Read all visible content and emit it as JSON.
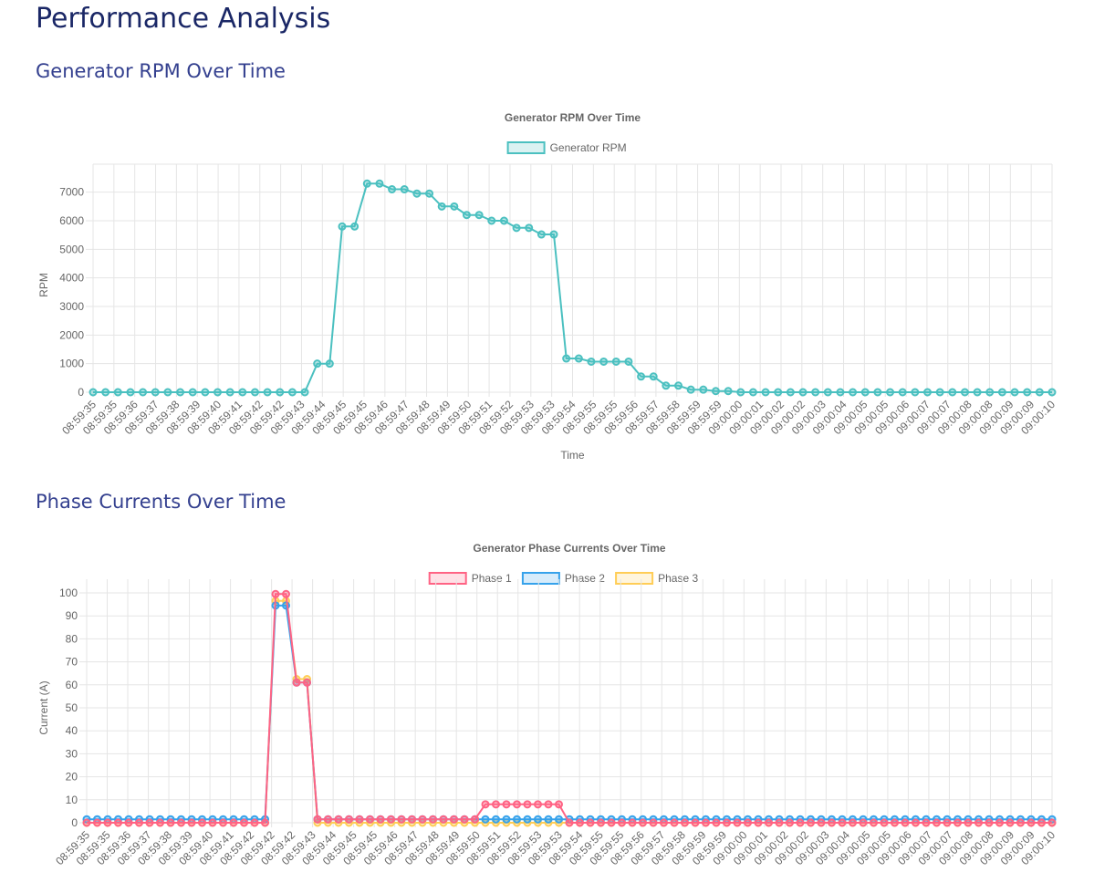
{
  "page": {
    "title": "Performance Analysis",
    "sections": [
      {
        "heading": "Generator RPM Over Time"
      },
      {
        "heading": "Phase Currents Over Time"
      }
    ]
  },
  "chart_data": [
    {
      "type": "line",
      "title": "Generator RPM Over Time",
      "xlabel": "Time",
      "ylabel": "RPM",
      "ylim": [
        0,
        7500
      ],
      "yticks": [
        0,
        1000,
        2000,
        3000,
        4000,
        5000,
        6000,
        7000
      ],
      "legend_position": "top",
      "grid": true,
      "x": [
        "08:59:35",
        "08:59:35",
        "08:59:36",
        "08:59:36",
        "08:59:37",
        "08:59:37",
        "08:59:38",
        "08:59:38",
        "08:59:39",
        "08:59:39",
        "08:59:40",
        "08:59:40",
        "08:59:41",
        "08:59:41",
        "08:59:42",
        "08:59:42",
        "08:59:42",
        "08:59:42",
        "08:59:43",
        "08:59:43",
        "08:59:44",
        "08:59:44",
        "08:59:45",
        "08:59:45",
        "08:59:45",
        "08:59:45",
        "08:59:46",
        "08:59:46",
        "08:59:47",
        "08:59:47",
        "08:59:48",
        "08:59:48",
        "08:59:49",
        "08:59:49",
        "08:59:50",
        "08:59:50",
        "08:59:51",
        "08:59:51",
        "08:59:52",
        "08:59:52",
        "08:59:53",
        "08:59:53",
        "08:59:53",
        "08:59:53",
        "08:59:54",
        "08:59:54",
        "08:59:55",
        "08:59:55",
        "08:59:56",
        "08:59:56",
        "08:59:57",
        "08:59:57",
        "08:59:58",
        "08:59:58",
        "08:59:59",
        "08:59:59",
        "09:00:00",
        "09:00:00",
        "09:00:01",
        "09:00:01",
        "09:00:02",
        "09:00:02",
        "09:00:03",
        "09:00:03",
        "09:00:04",
        "09:00:04",
        "09:00:05",
        "09:00:05",
        "09:00:06",
        "09:00:06",
        "09:00:07",
        "09:00:07",
        "09:00:08",
        "09:00:08",
        "09:00:09",
        "09:00:09",
        "09:00:10",
        "09:00:10"
      ],
      "x_tick_labels": [
        "08:59:35",
        "08:59:35",
        "08:59:36",
        "08:59:37",
        "08:59:38",
        "08:59:39",
        "08:59:40",
        "08:59:41",
        "08:59:42",
        "08:59:42",
        "08:59:43",
        "08:59:44",
        "08:59:45",
        "08:59:45",
        "08:59:46",
        "08:59:47",
        "08:59:48",
        "08:59:49",
        "08:59:50",
        "08:59:51",
        "08:59:52",
        "08:59:53",
        "08:59:53",
        "08:59:54",
        "08:59:55",
        "08:59:55",
        "08:59:56",
        "08:59:57",
        "08:59:58",
        "08:59:59",
        "08:59:59",
        "09:00:00",
        "09:00:01",
        "09:00:02",
        "09:00:02",
        "09:00:03",
        "09:00:04",
        "09:00:05",
        "09:00:05",
        "09:00:06",
        "09:00:07",
        "09:00:07",
        "09:00:08",
        "09:00:08",
        "09:00:09",
        "09:00:09",
        "09:00:10"
      ],
      "series": [
        {
          "name": "Generator RPM",
          "color": "#4bc0c0",
          "values": [
            0,
            0,
            0,
            0,
            0,
            0,
            0,
            0,
            0,
            0,
            0,
            0,
            0,
            0,
            0,
            0,
            0,
            0,
            1000,
            1000,
            5800,
            5800,
            7300,
            7300,
            7100,
            7100,
            6950,
            6950,
            6500,
            6500,
            6200,
            6200,
            6000,
            6000,
            5750,
            5750,
            5520,
            5520,
            1180,
            1180,
            1070,
            1070,
            1070,
            1070,
            550,
            550,
            230,
            230,
            90,
            90,
            40,
            40,
            0,
            0,
            0,
            0,
            0,
            0,
            0,
            0,
            0,
            0,
            0,
            0,
            0,
            0,
            0,
            0,
            0,
            0,
            0,
            0,
            0,
            0,
            0,
            0,
            0,
            0
          ]
        }
      ]
    },
    {
      "type": "line",
      "title": "Generator Phase Currents Over Time",
      "xlabel": "",
      "ylabel": "Current (A)",
      "ylim": [
        0,
        100
      ],
      "yticks": [
        0,
        10,
        20,
        30,
        40,
        50,
        60,
        70,
        80,
        90,
        100
      ],
      "legend_position": "top",
      "grid": true,
      "x_tick_labels": [
        "08:59:35",
        "08:59:35",
        "08:59:36",
        "08:59:37",
        "08:59:38",
        "08:59:39",
        "08:59:40",
        "08:59:41",
        "08:59:42",
        "08:59:42",
        "08:59:42",
        "08:59:43",
        "08:59:44",
        "08:59:45",
        "08:59:45",
        "08:59:46",
        "08:59:47",
        "08:59:48",
        "08:59:49",
        "08:59:50",
        "08:59:51",
        "08:59:52",
        "08:59:53",
        "08:59:53",
        "08:59:54",
        "08:59:55",
        "08:59:55",
        "08:59:56",
        "08:59:57",
        "08:59:58",
        "08:59:59",
        "08:59:59",
        "09:00:00",
        "09:00:01",
        "09:00:02",
        "09:00:02",
        "09:00:03",
        "09:00:04",
        "09:00:05",
        "09:00:05",
        "09:00:06",
        "09:00:07",
        "09:00:07",
        "09:00:08",
        "09:00:08",
        "09:00:09",
        "09:00:09",
        "09:00:10"
      ],
      "series": [
        {
          "name": "Phase 1",
          "color": "#ff6384",
          "values": [
            0,
            0,
            0,
            0,
            0,
            0,
            0,
            0,
            0,
            0,
            0,
            0,
            0,
            0,
            0,
            0,
            0,
            0,
            99.5,
            99.5,
            61,
            61,
            1.5,
            1.5,
            1.5,
            1.5,
            1.5,
            1.5,
            1.5,
            1.5,
            1.5,
            1.5,
            1.5,
            1.5,
            1.5,
            1.5,
            1.5,
            1.5,
            8,
            8,
            8,
            8,
            8,
            8,
            8,
            8,
            0,
            0,
            0,
            0,
            0,
            0,
            0,
            0,
            0,
            0,
            0,
            0,
            0,
            0,
            0,
            0,
            0,
            0,
            0,
            0,
            0,
            0,
            0,
            0,
            0,
            0,
            0,
            0,
            0,
            0,
            0,
            0,
            0,
            0,
            0,
            0,
            0,
            0,
            0,
            0,
            0,
            0,
            0,
            0,
            0,
            0,
            0
          ]
        },
        {
          "name": "Phase 2",
          "color": "#36a2eb",
          "values": [
            1.5,
            1.5,
            1.5,
            1.5,
            1.5,
            1.5,
            1.5,
            1.5,
            1.5,
            1.5,
            1.5,
            1.5,
            1.5,
            1.5,
            1.5,
            1.5,
            1.5,
            1.5,
            94.5,
            94.5,
            61,
            61,
            1.5,
            1.5,
            1.5,
            1.5,
            1.5,
            1.5,
            1.5,
            1.5,
            1.5,
            1.5,
            1.5,
            1.5,
            1.5,
            1.5,
            1.5,
            1.5,
            1.5,
            1.5,
            1.5,
            1.5,
            1.5,
            1.5,
            1.5,
            1.5,
            1.5,
            1.5,
            1.5,
            1.5,
            1.5,
            1.5,
            1.5,
            1.5,
            1.5,
            1.5,
            1.5,
            1.5,
            1.5,
            1.5,
            1.5,
            1.5,
            1.5,
            1.5,
            1.5,
            1.5,
            1.5,
            1.5,
            1.5,
            1.5,
            1.5,
            1.5,
            1.5,
            1.5,
            1.5,
            1.5,
            1.5,
            1.5,
            1.5,
            1.5,
            1.5,
            1.5,
            1.5,
            1.5,
            1.5,
            1.5,
            1.5,
            1.5,
            1.5,
            1.5,
            1.5,
            1.5,
            1.5
          ]
        },
        {
          "name": "Phase 3",
          "color": "#ffcd56",
          "values": [
            0,
            0,
            0,
            0,
            0,
            0,
            0,
            0,
            0,
            0,
            0,
            0,
            0,
            0,
            0,
            0,
            0,
            0,
            96.5,
            96.5,
            62.5,
            62.5,
            0,
            0,
            0,
            0,
            0,
            0,
            0,
            0,
            0,
            0,
            0,
            0,
            0,
            0,
            0,
            0,
            0,
            0,
            0,
            0,
            0,
            0,
            0,
            0,
            0,
            0,
            0,
            0,
            0,
            0,
            0,
            0,
            0,
            0,
            0,
            0,
            0,
            0,
            0,
            0,
            0,
            0,
            0,
            0,
            0,
            0,
            0,
            0,
            0,
            0,
            0,
            0,
            0,
            0,
            0,
            0,
            0,
            0,
            0,
            0,
            0,
            0,
            0,
            0,
            0,
            0,
            0,
            0,
            0,
            0,
            0
          ]
        }
      ]
    }
  ]
}
